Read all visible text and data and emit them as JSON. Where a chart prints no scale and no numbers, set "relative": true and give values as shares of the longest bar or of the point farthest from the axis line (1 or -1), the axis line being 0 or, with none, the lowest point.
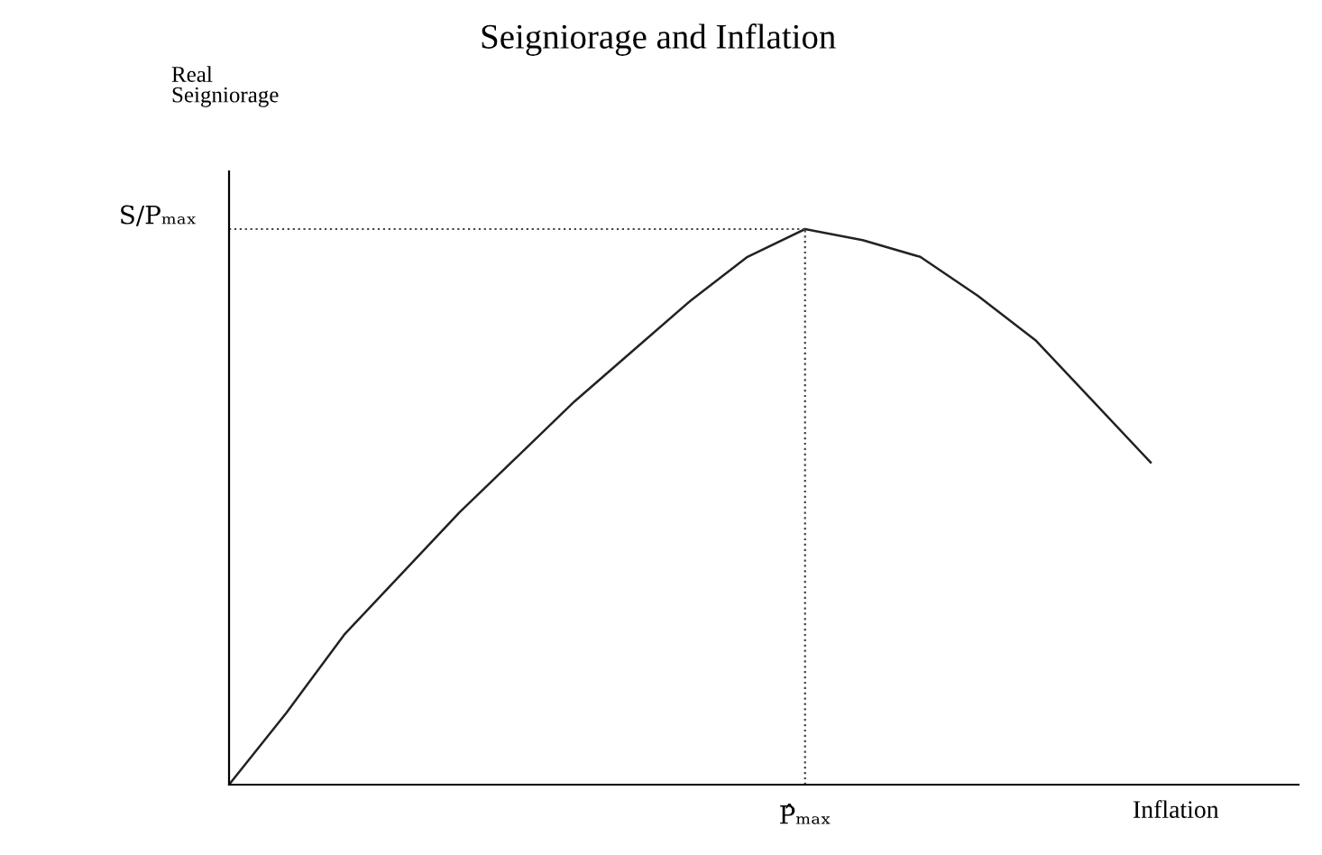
{
  "chart_data": {
    "type": "line",
    "title": "Seigniorage and Inflation",
    "xlabel": "Inflation",
    "annotations": [
      "Real\nSeigniorage",
      "P̂ₘₐₓ"
    ],
    "relative": true,
    "categories": [
      null,
      null,
      null,
      null,
      null,
      null,
      null,
      null,
      null,
      null,
      null,
      null,
      null,
      null,
      null,
      null,
      null
    ],
    "series": [
      {
        "color": "#222222",
        "values": [
          0,
          0.13,
          0.27,
          0.38,
          0.49,
          0.59,
          0.69,
          0.78,
          0.87,
          0.95,
          1.0,
          0.98,
          0.95,
          0.88,
          0.8,
          0.69,
          0.58
        ]
      }
    ],
    "ref_lines": [
      {
        "axis": "y",
        "value": 1,
        "label": "S/Pₘₐₓ",
        "line_style": "dotted",
        "color": "#444444"
      }
    ],
    "marker": "none",
    "line_style": "solid"
  }
}
